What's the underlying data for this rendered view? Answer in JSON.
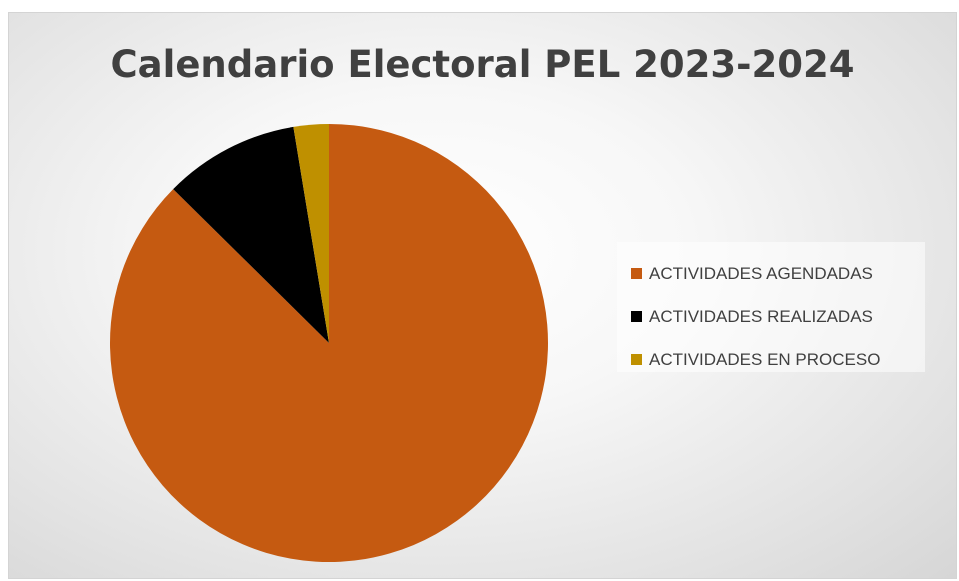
{
  "chart_data": {
    "type": "pie",
    "title": "Calendario Electoral PEL 2023-2024",
    "start_angle_deg": 0,
    "direction": "clockwise",
    "legend_position": "right",
    "slices": [
      {
        "label": "ACTIVIDADES AGENDADAS",
        "value": 87.4,
        "color": "#C55A11"
      },
      {
        "label": "ACTIVIDADES REALIZADAS",
        "value": 10.0,
        "color": "#000000"
      },
      {
        "label": "ACTIVIDADES EN PROCESO",
        "value": 2.6,
        "color": "#BF9000"
      }
    ]
  }
}
